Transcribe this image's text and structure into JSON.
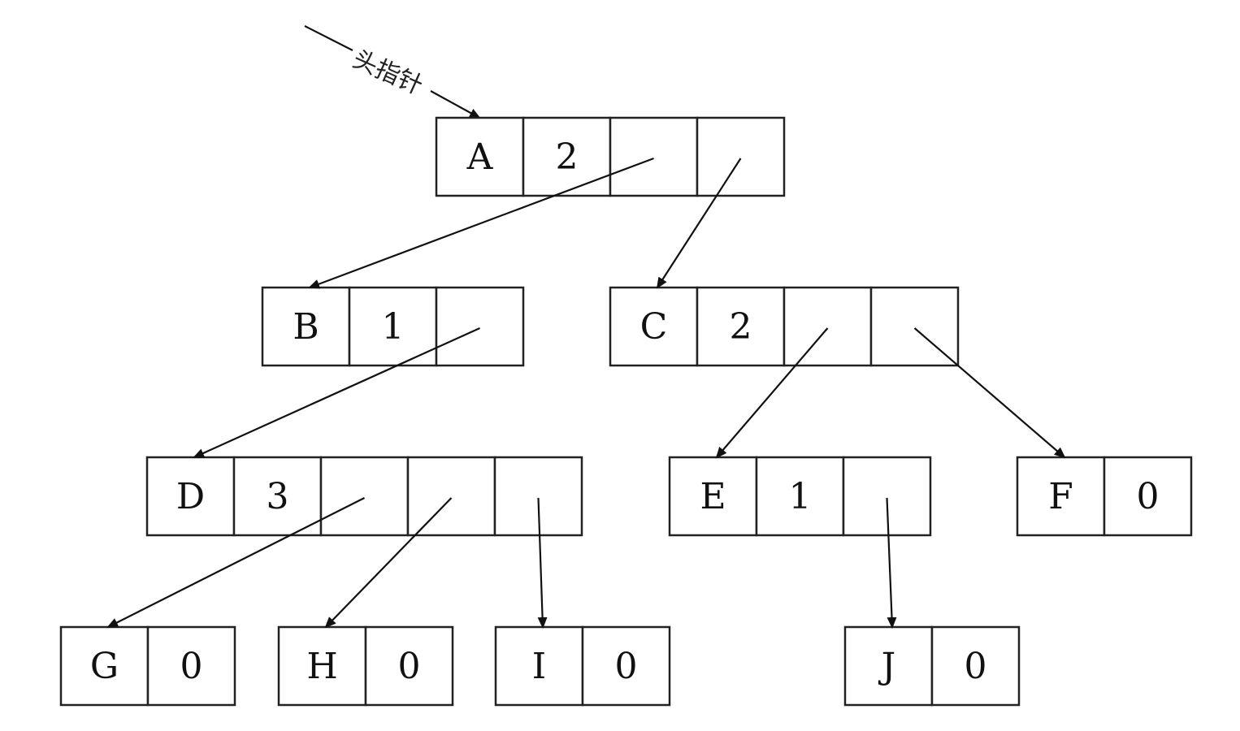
{
  "head_pointer_label": "头指针",
  "nodes": [
    {
      "id": "A",
      "data": "A",
      "degree": "2"
    },
    {
      "id": "B",
      "data": "B",
      "degree": "1"
    },
    {
      "id": "C",
      "data": "C",
      "degree": "2"
    },
    {
      "id": "D",
      "data": "D",
      "degree": "3"
    },
    {
      "id": "E",
      "data": "E",
      "degree": "1"
    },
    {
      "id": "F",
      "data": "F",
      "degree": "0"
    },
    {
      "id": "G",
      "data": "G",
      "degree": "0"
    },
    {
      "id": "H",
      "data": "H",
      "degree": "0"
    },
    {
      "id": "I",
      "data": "I",
      "degree": "0"
    },
    {
      "id": "J",
      "data": "J",
      "degree": "0"
    }
  ],
  "edges": [
    {
      "from": "A",
      "pointer": 1,
      "to": "B"
    },
    {
      "from": "A",
      "pointer": 2,
      "to": "C"
    },
    {
      "from": "B",
      "pointer": 1,
      "to": "D"
    },
    {
      "from": "C",
      "pointer": 1,
      "to": "E"
    },
    {
      "from": "C",
      "pointer": 2,
      "to": "F"
    },
    {
      "from": "D",
      "pointer": 1,
      "to": "G"
    },
    {
      "from": "D",
      "pointer": 2,
      "to": "H"
    },
    {
      "from": "D",
      "pointer": 3,
      "to": "I"
    },
    {
      "from": "E",
      "pointer": 1,
      "to": "J"
    }
  ]
}
